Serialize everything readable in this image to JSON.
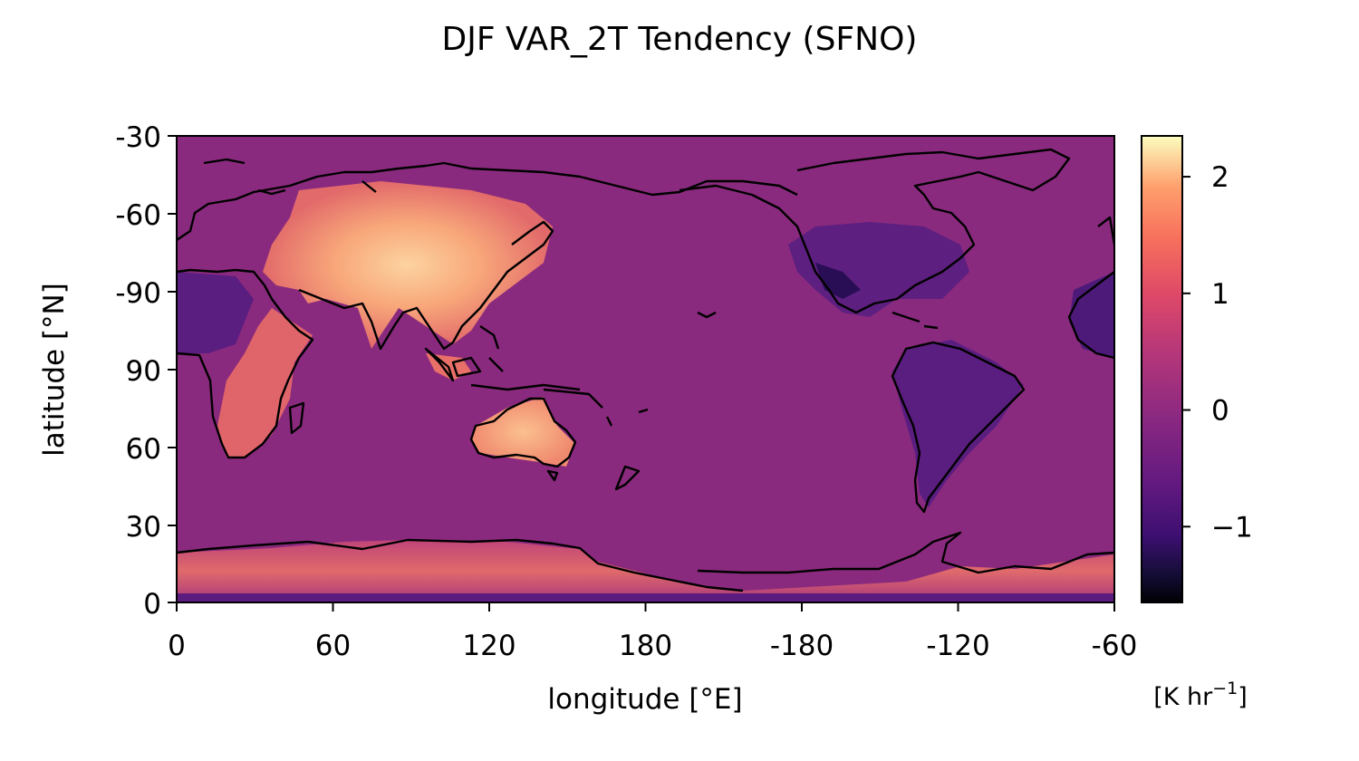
{
  "title": "DJF VAR_2T Tendency (SFNO)",
  "xlabel": "longitude [°E]",
  "ylabel": "latitude [°N]",
  "x_ticks": [
    "0",
    "60",
    "120",
    "180",
    "-180",
    "-120",
    "-60"
  ],
  "y_ticks": [
    "-30",
    "-60",
    "-90",
    "90",
    "60",
    "30",
    "0"
  ],
  "colorbar": {
    "unit_base": "[K hr",
    "unit_sup": "−1",
    "unit_end": "]",
    "ticks": [
      "2",
      "1",
      "0",
      "−1"
    ],
    "tick_values": [
      2,
      1,
      0,
      -1
    ],
    "range": [
      -1.65,
      2.35
    ],
    "colormap": "magma"
  },
  "colors": {
    "background_field": "#8a2a7e",
    "warm_land": "#f7a074",
    "cool_land": "#4d1a7a",
    "coastline": "#000000"
  }
}
